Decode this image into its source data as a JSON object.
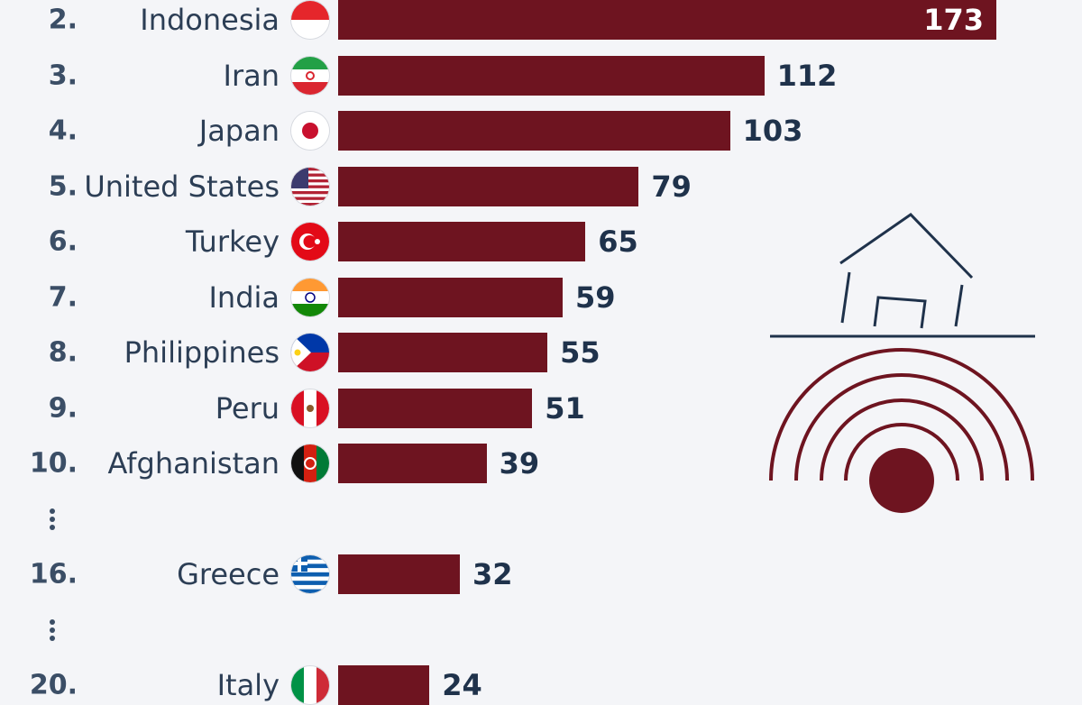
{
  "chart_data": {
    "type": "bar",
    "orientation": "horizontal",
    "colors": {
      "bar": "#6e1420",
      "label": "#2c3e55",
      "value": "#1f324b",
      "background": "#f4f5f8"
    },
    "rows": [
      {
        "rank": "2.",
        "country": "Indonesia",
        "value": 173,
        "flag": "flag-indonesia-icon"
      },
      {
        "rank": "3.",
        "country": "Iran",
        "value": 112,
        "flag": "flag-iran-icon"
      },
      {
        "rank": "4.",
        "country": "Japan",
        "value": 103,
        "flag": "flag-japan-icon"
      },
      {
        "rank": "5.",
        "country": "United States",
        "value": 79,
        "flag": "flag-united-states-icon"
      },
      {
        "rank": "6.",
        "country": "Turkey",
        "value": 65,
        "flag": "flag-turkey-icon"
      },
      {
        "rank": "7.",
        "country": "India",
        "value": 59,
        "flag": "flag-india-icon"
      },
      {
        "rank": "8.",
        "country": "Philippines",
        "value": 55,
        "flag": "flag-philippines-icon"
      },
      {
        "rank": "9.",
        "country": "Peru",
        "value": 51,
        "flag": "flag-peru-icon"
      },
      {
        "rank": "10.",
        "country": "Afghanistan",
        "value": 39,
        "flag": "flag-afghanistan-icon"
      },
      {
        "gap": true
      },
      {
        "rank": "16.",
        "country": "Greece",
        "value": 32,
        "flag": "flag-greece-icon"
      },
      {
        "gap": true
      },
      {
        "rank": "20.",
        "country": "Italy",
        "value": 24,
        "flag": "flag-italy-icon"
      }
    ]
  },
  "illustration": {
    "icon": "earthquake-house-icon"
  }
}
